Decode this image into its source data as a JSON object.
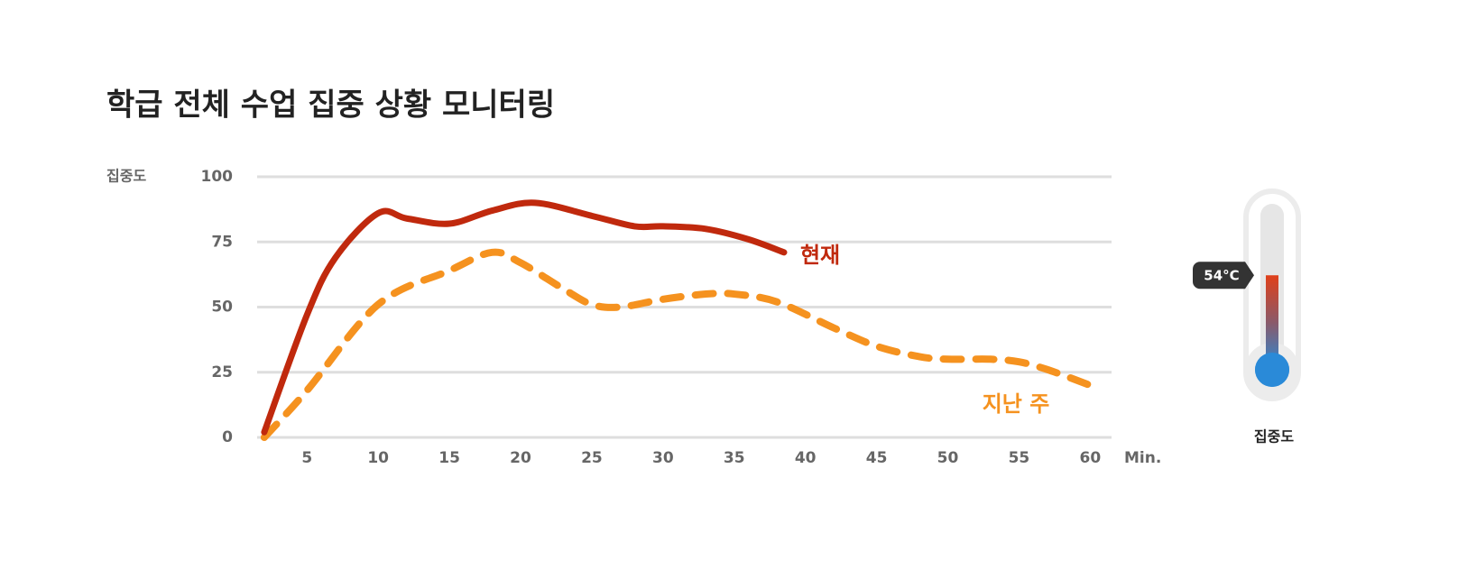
{
  "chart_data": {
    "type": "line",
    "title": "학급 전체 수업 집중 상황 모니터링",
    "y_label": "집중도",
    "x_label": "Min.",
    "xlim": [
      1.5,
      61.5
    ],
    "xticks": [
      5,
      10,
      15,
      20,
      25,
      30,
      35,
      40,
      45,
      50,
      55,
      60
    ],
    "ylim": [
      0,
      100
    ],
    "yticks": [
      0,
      25,
      50,
      75,
      100
    ],
    "grid": true,
    "series": [
      {
        "name": "현재",
        "color": "#c0290d",
        "dashed": false,
        "x": [
          2,
          5,
          7,
          10,
          12,
          15,
          18,
          21,
          25,
          28,
          30,
          33,
          36,
          38.5
        ],
        "values": [
          2,
          47,
          69,
          86,
          84,
          82,
          87,
          90,
          85,
          81,
          81,
          80,
          76,
          71
        ]
      },
      {
        "name": "지난 주",
        "color": "#f5921f",
        "dashed": true,
        "x": [
          2,
          5,
          10,
          15,
          18,
          20,
          23,
          25,
          27,
          30,
          33,
          35,
          38,
          42,
          45,
          48,
          50,
          53,
          55,
          57,
          60
        ],
        "values": [
          0,
          18,
          51,
          64,
          71,
          67,
          57,
          51,
          50,
          53,
          55,
          55,
          52,
          42,
          35,
          31,
          30,
          30,
          29,
          26,
          20
        ]
      }
    ]
  },
  "thermometer": {
    "value": 54,
    "value_label": "54°C",
    "label": "집중도"
  }
}
